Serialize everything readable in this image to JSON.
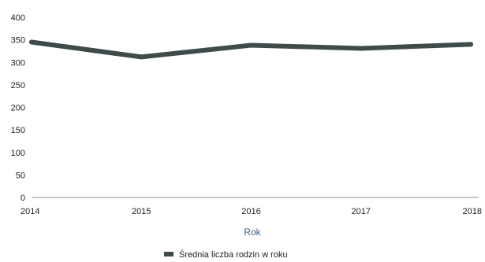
{
  "chart_data": {
    "type": "line",
    "title": "",
    "xlabel": "Rok",
    "ylabel": "",
    "categories": [
      "2014",
      "2015",
      "2016",
      "2017",
      "2018"
    ],
    "series": [
      {
        "name": "Średnia liczba rodzin w roku",
        "values": [
          345,
          312,
          338,
          331,
          340
        ],
        "color": "#3f4a4a"
      }
    ],
    "y_ticks": [
      0,
      50,
      100,
      150,
      200,
      250,
      300,
      350,
      400
    ],
    "ylim": [
      0,
      400
    ],
    "grid": false,
    "legend_position": "bottom-center",
    "axis_title_color": "#3a5f8a",
    "axis_line_color": "#8a8a8a"
  }
}
